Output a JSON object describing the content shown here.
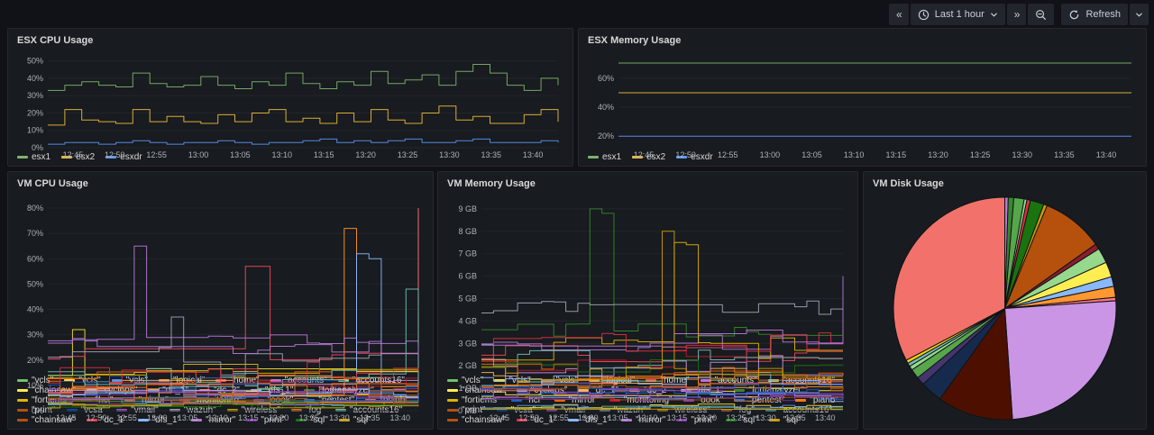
{
  "toolbar": {
    "prev_range": "«",
    "time_range_label": "Last 1 hour",
    "next_range": "»",
    "refresh_label": "Refresh"
  },
  "panels": {
    "esx_cpu": {
      "title": "ESX CPU Usage"
    },
    "esx_memory": {
      "title": "ESX Memory Usage"
    },
    "vm_cpu": {
      "title": "VM CPU Usage"
    },
    "vm_memory": {
      "title": "VM Memory Usage"
    },
    "vm_disk": {
      "title": "VM Disk Usage"
    }
  },
  "colors": {
    "background": "#111217",
    "panel": "#181B1F",
    "panel_border": "#26282E",
    "grid": "#22252B",
    "title_text": "#D8D9DA",
    "axis_text": "#AEB2B9",
    "button": "#22252B"
  },
  "chart_data": [
    {
      "id": "esx-cpu",
      "type": "line",
      "title": "ESX CPU Usage",
      "xlim": [
        0,
        61
      ],
      "x_tick_minutes": [
        3,
        8,
        13,
        18,
        23,
        28,
        33,
        38,
        43,
        48,
        53,
        58
      ],
      "x_tick_labels": [
        "12:45",
        "12:50",
        "12:55",
        "13:00",
        "13:05",
        "13:10",
        "13:15",
        "13:20",
        "13:25",
        "13:30",
        "13:35",
        "13:40"
      ],
      "ylim": [
        0,
        55
      ],
      "y_ticks": [
        0,
        10,
        20,
        30,
        40,
        50
      ],
      "y_tick_labels": [
        "0%",
        "10%",
        "20%",
        "30%",
        "40%",
        "50%"
      ],
      "pad_left": 34,
      "legend_position": "bottom",
      "grid": true,
      "series": [
        {
          "name": "esx1",
          "color": "#7EB26D",
          "values": [
            33,
            36,
            38,
            36,
            35,
            43,
            37,
            35,
            36,
            41,
            36,
            34,
            38,
            36,
            43,
            37,
            34,
            38,
            36,
            44,
            37,
            39,
            42,
            36,
            44,
            48,
            43,
            36,
            33,
            40,
            36
          ]
        },
        {
          "name": "esx2",
          "color": "#EAB839",
          "values": [
            13,
            22,
            16,
            15,
            14,
            22,
            15,
            18,
            15,
            14,
            19,
            15,
            20,
            22,
            15,
            17,
            14,
            20,
            15,
            22,
            16,
            14,
            20,
            24,
            16,
            18,
            14,
            14,
            19,
            22,
            15
          ]
        },
        {
          "name": "esxdr",
          "color": "#5794F2",
          "values": [
            2,
            3,
            3,
            2,
            3,
            4,
            3,
            2,
            3,
            3,
            4,
            3,
            2,
            3,
            3,
            4,
            5,
            3,
            4,
            3,
            4,
            5,
            3,
            3,
            4,
            5,
            3,
            3,
            3,
            4,
            3
          ]
        }
      ]
    },
    {
      "id": "esx-mem",
      "type": "line",
      "title": "ESX Memory Usage",
      "xlim": [
        0,
        61
      ],
      "x_tick_minutes": [
        3,
        8,
        13,
        18,
        23,
        28,
        33,
        38,
        43,
        48,
        53,
        58
      ],
      "x_tick_labels": [
        "12:45",
        "12:50",
        "12:55",
        "13:00",
        "13:05",
        "13:10",
        "13:15",
        "13:20",
        "13:25",
        "13:30",
        "13:35",
        "13:40"
      ],
      "ylim": [
        12,
        78
      ],
      "y_ticks": [
        20,
        40,
        60
      ],
      "y_tick_labels": [
        "20%",
        "40%",
        "60%"
      ],
      "pad_left": 34,
      "legend_position": "bottom",
      "grid": true,
      "series": [
        {
          "name": "esx1",
          "color": "#7EB26D",
          "values": [
            70.5,
            70.5
          ]
        },
        {
          "name": "esx2",
          "color": "#EAB839",
          "values": [
            50,
            50
          ]
        },
        {
          "name": "esxdr",
          "color": "#5794F2",
          "values": [
            20,
            20
          ]
        }
      ]
    },
    {
      "id": "vm-cpu",
      "type": "line",
      "title": "VM CPU Usage",
      "xlim": [
        0,
        61
      ],
      "x_tick_minutes": [
        3,
        8,
        13,
        18,
        23,
        28,
        33,
        38,
        43,
        48,
        53,
        58
      ],
      "x_tick_labels": [
        "12:45",
        "12:50",
        "12:55",
        "13:00",
        "13:05",
        "13:10",
        "13:15",
        "13:20",
        "13:25",
        "13:30",
        "13:35",
        "13:40"
      ],
      "ylim": [
        0,
        85
      ],
      "y_ticks": [
        0,
        10,
        20,
        30,
        40,
        50,
        60,
        70,
        80
      ],
      "y_tick_labels": [
        "0%",
        "10%",
        "20%",
        "30%",
        "40%",
        "50%",
        "60%",
        "70%",
        "80%"
      ],
      "pad_left": 34,
      "legend_position": "bottom",
      "grid": true,
      "values_note": "dense multi-series; per-series baseline/amplitude estimated from plot, spikes read off gridlines",
      "series": [
        {
          "name": "\"vcls\"",
          "color": "#73BF69",
          "base": 3,
          "amp": 1.5
        },
        {
          "name": "\"vcls\"",
          "color": "#FADE2A",
          "base": 16,
          "amp": 3,
          "spikes": [
            {
              "i": 2,
              "v": 32
            }
          ]
        },
        {
          "name": "\"vcls\"",
          "color": "#5794F2",
          "base": 5,
          "amp": 2
        },
        {
          "name": "\"logical\"",
          "color": "#FF9830",
          "base": 7,
          "amp": 3,
          "spikes": [
            {
              "i": 24,
              "v": 72
            }
          ]
        },
        {
          "name": "\"home\"",
          "color": "#F2495C",
          "base": 22,
          "amp": 3,
          "spikes": [
            {
              "i": 16,
              "v": 57
            },
            {
              "i": 17,
              "v": 57
            }
          ]
        },
        {
          "name": "\"accounts\"",
          "color": "#B877D9",
          "base": 28,
          "amp": 2,
          "spikes": [
            {
              "i": 7,
              "v": 65
            }
          ]
        },
        {
          "name": "\"accounts16\"",
          "color": "#96D98D",
          "base": 10,
          "amp": 4
        },
        {
          "name": "\"chainsaw\"",
          "color": "#FFEE52",
          "base": 6,
          "amp": 2
        },
        {
          "name": "\"cyclops\"",
          "color": "#8AB8FF",
          "base": 4,
          "amp": 2,
          "spikes": [
            {
              "i": 25,
              "v": 62
            },
            {
              "i": 26,
              "v": 60
            }
          ]
        },
        {
          "name": "\"dc_1\"",
          "color": "#FFB357",
          "base": 12,
          "amp": 4
        },
        {
          "name": "\"dc_2\"",
          "color": "#FF7383",
          "base": 8,
          "amp": 3,
          "spikes": [
            {
              "i": 30,
              "v": 80
            }
          ]
        },
        {
          "name": "\"dfs_1\"",
          "color": "#CA95E5",
          "base": 9,
          "amp": 3
        },
        {
          "name": "\"fortianalyzer\"",
          "color": "#37872D",
          "base": 5,
          "amp": 2
        },
        {
          "name": "\"fortiems\"",
          "color": "#E0B400",
          "base": 16,
          "amp": 4
        },
        {
          "name": "\"hci\"",
          "color": "#1F60C4",
          "base": 6,
          "amp": 2
        },
        {
          "name": "\"mirror\"",
          "color": "#FA6400",
          "base": 13,
          "amp": 4
        },
        {
          "name": "\"monitoring\"",
          "color": "#C4162A",
          "base": 10,
          "amp": 3
        },
        {
          "name": "\"oook\"",
          "color": "#8F3BB8",
          "base": 7,
          "amp": 2
        },
        {
          "name": "\"pentest\"",
          "color": "#3274D9",
          "base": 5,
          "amp": 2
        },
        {
          "name": "\"planb\"",
          "color": "#FF780A",
          "base": 9,
          "amp": 3
        },
        {
          "name": "\"print\"",
          "color": "#B5510D",
          "base": 4,
          "amp": 1.5
        },
        {
          "name": "\"vcsa\"",
          "color": "#1250B0",
          "base": 11,
          "amp": 3
        },
        {
          "name": "\"vmail\"",
          "color": "#A352CC",
          "base": 6,
          "amp": 2
        },
        {
          "name": "\"wazuh\"",
          "color": "#9DA5B8",
          "base": 20,
          "amp": 6,
          "spikes": [
            {
              "i": 10,
              "v": 37
            }
          ]
        },
        {
          "name": "\"wireless\"",
          "color": "#CC9D00",
          "base": 3,
          "amp": 1
        },
        {
          "name": "\"fog\"",
          "color": "#E0752D",
          "base": 8,
          "amp": 3
        },
        {
          "name": "\"accounts16\"",
          "color": "#73BFB8",
          "base": 12,
          "amp": 5,
          "spikes": [
            {
              "i": 29,
              "v": 48
            }
          ]
        },
        {
          "name": "\"chainsaw\"",
          "color": "#B5510D",
          "base": 5,
          "amp": 2
        },
        {
          "name": "\"dc_1\"",
          "color": "#E02F44",
          "base": 15,
          "amp": 5
        },
        {
          "name": "\"dfs_1\"",
          "color": "#8AB8FF",
          "base": 7,
          "amp": 2
        },
        {
          "name": "\"mirror\"",
          "color": "#B877D9",
          "base": 25,
          "amp": 3
        },
        {
          "name": "\"print\"",
          "color": "#7C2EA3",
          "base": 3,
          "amp": 1
        },
        {
          "name": "\"sql\"",
          "color": "#19730E",
          "base": 2,
          "amp": 1
        },
        {
          "name": "\"sql\"",
          "color": "#CC9D00",
          "base": 2,
          "amp": 1
        }
      ]
    },
    {
      "id": "vm-mem",
      "type": "line",
      "title": "VM Memory Usage",
      "xlim": [
        0,
        61
      ],
      "x_tick_minutes": [
        3,
        8,
        13,
        18,
        23,
        28,
        33,
        38,
        43,
        48,
        53,
        58
      ],
      "x_tick_labels": [
        "12:45",
        "12:50",
        "12:55",
        "13:00",
        "13:05",
        "13:10",
        "13:15",
        "13:20",
        "13:25",
        "13:30",
        "13:35",
        "13:40"
      ],
      "ylim": [
        0,
        9.6
      ],
      "y_ticks": [
        0,
        1,
        2,
        3,
        4,
        5,
        6,
        7,
        8,
        9
      ],
      "y_tick_labels": [
        "0 MB",
        "1 GB",
        "2 GB",
        "3 GB",
        "4 GB",
        "5 GB",
        "6 GB",
        "7 GB",
        "8 GB",
        "9 GB"
      ],
      "pad_left": 38,
      "legend_position": "bottom",
      "grid": true,
      "values_note": "dense multi-series; per-series baseline/amplitude in GB estimated from plot",
      "series": [
        {
          "name": "\"vcls\"",
          "color": "#73BF69",
          "base": 0.15,
          "amp": 0.1
        },
        {
          "name": "\"vcls\"",
          "color": "#FADE2A",
          "base": 0.2,
          "amp": 0.1
        },
        {
          "name": "\"vcls\"",
          "color": "#5794F2",
          "base": 0.15,
          "amp": 0.1
        },
        {
          "name": "\"logical\"",
          "color": "#FF9830",
          "base": 1.0,
          "amp": 0.3
        },
        {
          "name": "\"home\"",
          "color": "#F2495C",
          "base": 2.5,
          "amp": 0.5
        },
        {
          "name": "\"accounts\"",
          "color": "#B877D9",
          "base": 3.0,
          "amp": 0.4,
          "spikes": [
            {
              "i": 30,
              "v": 6.0
            }
          ]
        },
        {
          "name": "\"accounts16\"",
          "color": "#96D98D",
          "base": 1.2,
          "amp": 0.3
        },
        {
          "name": "\"chainsaw\"",
          "color": "#FFEE52",
          "base": 0.8,
          "amp": 0.2
        },
        {
          "name": "\"cyclops\"",
          "color": "#8AB8FF",
          "base": 0.6,
          "amp": 0.2
        },
        {
          "name": "\"dc_1\"",
          "color": "#FFB357",
          "base": 1.5,
          "amp": 0.4
        },
        {
          "name": "\"dc_2\"",
          "color": "#FF7383",
          "base": 1.1,
          "amp": 0.3
        },
        {
          "name": "\"dfs_1\"",
          "color": "#CA95E5",
          "base": 2.0,
          "amp": 0.5
        },
        {
          "name": "\"fortianalyzer\"",
          "color": "#37872D",
          "base": 3.5,
          "amp": 0.4,
          "spikes": [
            {
              "i": 9,
              "v": 9.0
            },
            {
              "i": 10,
              "v": 8.8
            }
          ]
        },
        {
          "name": "\"fortiems\"",
          "color": "#E0B400",
          "base": 2.8,
          "amp": 0.6,
          "spikes": [
            {
              "i": 16,
              "v": 7.5
            },
            {
              "i": 17,
              "v": 7.4
            }
          ]
        },
        {
          "name": "\"hci\"",
          "color": "#1F60C4",
          "base": 0.9,
          "amp": 0.2
        },
        {
          "name": "\"mirror\"",
          "color": "#FA6400",
          "base": 1.8,
          "amp": 0.4
        },
        {
          "name": "\"monitoring\"",
          "color": "#C4162A",
          "base": 2.2,
          "amp": 0.5
        },
        {
          "name": "\"oook\"",
          "color": "#8F3BB8",
          "base": 1.0,
          "amp": 0.3
        },
        {
          "name": "\"pentest\"",
          "color": "#3274D9",
          "base": 0.7,
          "amp": 0.2
        },
        {
          "name": "\"planb\"",
          "color": "#FF780A",
          "base": 1.3,
          "amp": 0.3
        },
        {
          "name": "\"print\"",
          "color": "#B5510D",
          "base": 0.5,
          "amp": 0.1
        },
        {
          "name": "\"vcsa\"",
          "color": "#1250B0",
          "base": 1.1,
          "amp": 0.3
        },
        {
          "name": "\"vmail\"",
          "color": "#A352CC",
          "base": 0.8,
          "amp": 0.2
        },
        {
          "name": "\"wazuh\"",
          "color": "#9DA5B8",
          "base": 4.6,
          "amp": 0.35
        },
        {
          "name": "\"wireless\"",
          "color": "#CC9D00",
          "base": 0.07,
          "amp": 0.01
        },
        {
          "name": "\"fog\"",
          "color": "#E0752D",
          "base": 1.6,
          "amp": 0.4
        },
        {
          "name": "\"accounts16\"",
          "color": "#73BFB8",
          "base": 2.4,
          "amp": 0.6
        },
        {
          "name": "\"chainsaw\"",
          "color": "#B5510D",
          "base": 1.0,
          "amp": 0.3
        },
        {
          "name": "\"dc_1\"",
          "color": "#E02F44",
          "base": 2.9,
          "amp": 0.6
        },
        {
          "name": "\"dfs_1\"",
          "color": "#8AB8FF",
          "base": 1.4,
          "amp": 0.3
        },
        {
          "name": "\"mirror\"",
          "color": "#B877D9",
          "base": 3.2,
          "amp": 0.5
        },
        {
          "name": "\"print\"",
          "color": "#7C2EA3",
          "base": 0.6,
          "amp": 0.15
        },
        {
          "name": "\"sql\"",
          "color": "#19730E",
          "base": 2.0,
          "amp": 0.4
        },
        {
          "name": "\"sql\"",
          "color": "#CC9D00",
          "base": 1.7,
          "amp": 0.4,
          "spikes": [
            {
              "i": 15,
              "v": 8.0
            }
          ]
        }
      ]
    },
    {
      "id": "vm-disk",
      "type": "pie",
      "title": "VM Disk Usage",
      "start_angle_deg": -90,
      "direction": "clockwise",
      "values_note": "slice labels not shown on screen; percentages estimated from arc angles",
      "slices": [
        {
          "color": "#B877D9",
          "value": 0.5
        },
        {
          "color": "#37872D",
          "value": 0.8
        },
        {
          "color": "#56A64B",
          "value": 1.5
        },
        {
          "color": "#96D98D",
          "value": 0.4
        },
        {
          "color": "#E02F44",
          "value": 0.5
        },
        {
          "color": "#19730E",
          "value": 2.0
        },
        {
          "color": "#CC9D00",
          "value": 0.5
        },
        {
          "color": "#B5510D",
          "value": 9.0
        },
        {
          "color": "#8B1E2B",
          "value": 0.8
        },
        {
          "color": "#96D98D",
          "value": 2.2
        },
        {
          "color": "#FFEE52",
          "value": 2.2
        },
        {
          "color": "#8AB8FF",
          "value": 1.4
        },
        {
          "color": "#FF9830",
          "value": 1.6
        },
        {
          "color": "#FF7383",
          "value": 0.5
        },
        {
          "color": "#CA95E5",
          "value": 25.0
        },
        {
          "color": "#4D1000",
          "value": 11.0
        },
        {
          "color": "#152A4D",
          "value": 3.2
        },
        {
          "color": "#44356F",
          "value": 1.2
        },
        {
          "color": "#56A64B",
          "value": 1.4
        },
        {
          "color": "#96D98D",
          "value": 0.6
        },
        {
          "color": "#73BFB8",
          "value": 0.5
        },
        {
          "color": "#F2CC0C",
          "value": 0.5
        },
        {
          "color": "#F2726B",
          "value": 32.7
        }
      ]
    }
  ]
}
